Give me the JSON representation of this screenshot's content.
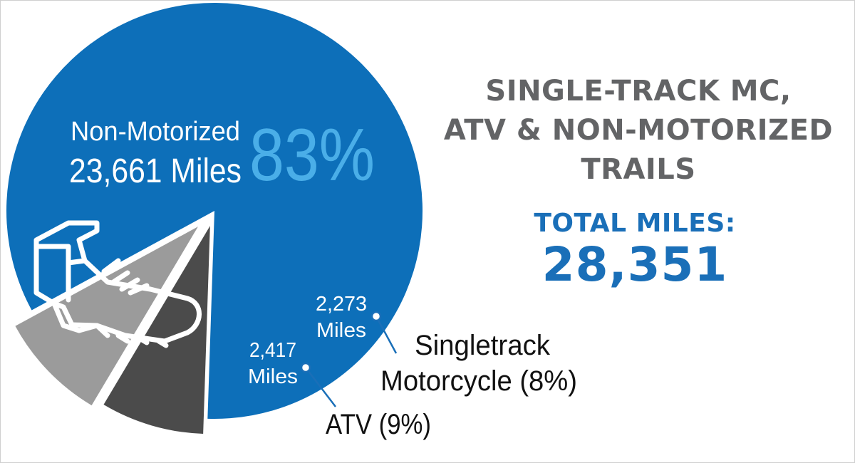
{
  "chart_data": {
    "type": "pie",
    "title": [
      "SINGLE-TRACK MC,",
      "ATV & NON-MOTORIZED",
      "TRAILS"
    ],
    "total_label": "TOTAL MILES:",
    "total_value": "28,351",
    "slices": [
      {
        "key": "non_motorized",
        "name": "Non-Motorized",
        "miles": 23661,
        "miles_text": "23,661 Miles",
        "percent": 83,
        "percent_text": "83%",
        "color": "#0d6fb9"
      },
      {
        "key": "atv",
        "name": "ATV",
        "miles": 2417,
        "miles_value": "2,417",
        "miles_unit": "Miles",
        "percent": 9,
        "callout": "ATV (9%)",
        "color": "#9b9b9b"
      },
      {
        "key": "singletrack_motorcycle",
        "name": "Singletrack Motorcycle",
        "miles": 2273,
        "miles_value": "2,273",
        "miles_unit": "Miles",
        "percent": 8,
        "callout_lines": [
          "Singletrack",
          "Motorcycle (8%)"
        ],
        "color": "#4b4b4b"
      }
    ],
    "accent_color": "#4aaee8",
    "icon": "hiking-boot-icon"
  }
}
